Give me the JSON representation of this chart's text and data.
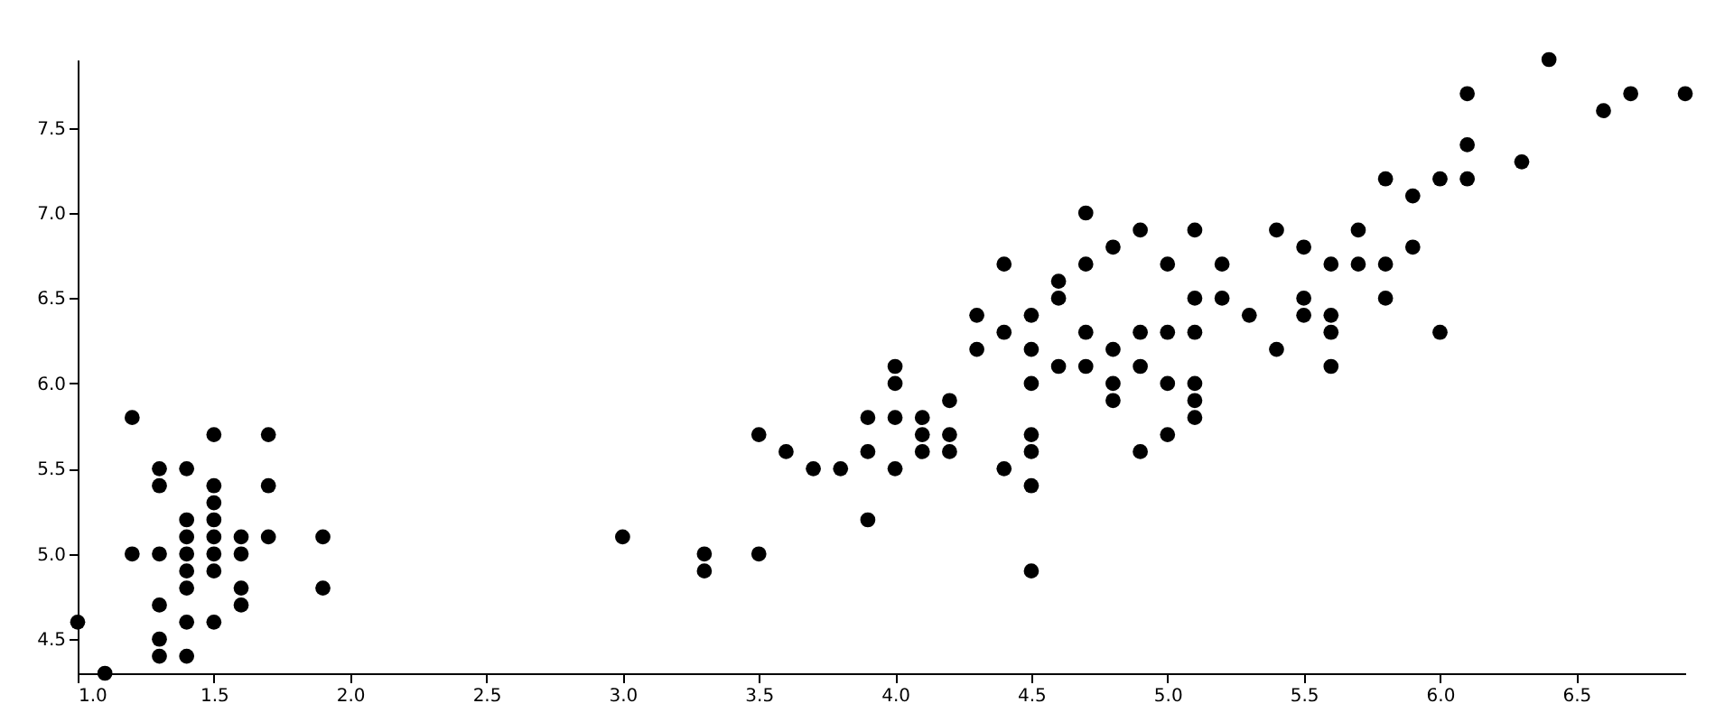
{
  "chart_data": {
    "type": "scatter",
    "marker": "circle",
    "grid": false,
    "xlim": [
      1.0,
      6.9
    ],
    "ylim": [
      4.3,
      7.9
    ],
    "xticks": [
      {
        "value": 1.0,
        "label": "1.0"
      },
      {
        "value": 1.5,
        "label": "1.5"
      },
      {
        "value": 2.0,
        "label": "2.0"
      },
      {
        "value": 2.5,
        "label": "2.5"
      },
      {
        "value": 3.0,
        "label": "3.0"
      },
      {
        "value": 3.5,
        "label": "3.5"
      },
      {
        "value": 4.0,
        "label": "4.0"
      },
      {
        "value": 4.5,
        "label": "4.5"
      },
      {
        "value": 5.0,
        "label": "5.0"
      },
      {
        "value": 5.5,
        "label": "5.5"
      },
      {
        "value": 6.0,
        "label": "6.0"
      },
      {
        "value": 6.5,
        "label": "6.5"
      }
    ],
    "yticks": [
      {
        "value": 4.5,
        "label": "4.5"
      },
      {
        "value": 5.0,
        "label": "5.0"
      },
      {
        "value": 5.5,
        "label": "5.5"
      },
      {
        "value": 6.0,
        "label": "6.0"
      },
      {
        "value": 6.5,
        "label": "6.5"
      },
      {
        "value": 7.0,
        "label": "7.0"
      },
      {
        "value": 7.5,
        "label": "7.5"
      }
    ],
    "series": [
      {
        "color": "#000000",
        "x": [
          1.0,
          1.1,
          1.2,
          1.2,
          1.3,
          1.3,
          1.3,
          1.3,
          1.3,
          1.3,
          1.4,
          1.4,
          1.4,
          1.4,
          1.4,
          1.4,
          1.4,
          1.4,
          1.5,
          1.5,
          1.5,
          1.5,
          1.5,
          1.5,
          1.5,
          1.5,
          1.6,
          1.6,
          1.6,
          1.6,
          1.7,
          1.7,
          1.7,
          1.9,
          1.9,
          3.0,
          3.3,
          3.3,
          3.5,
          3.5,
          3.6,
          3.7,
          3.8,
          3.9,
          3.9,
          3.9,
          4.0,
          4.0,
          4.0,
          4.0,
          4.1,
          4.1,
          4.1,
          4.2,
          4.2,
          4.2,
          4.3,
          4.3,
          4.4,
          4.4,
          4.4,
          4.5,
          4.5,
          4.5,
          4.5,
          4.5,
          4.5,
          4.5,
          4.6,
          4.6,
          4.6,
          4.7,
          4.7,
          4.7,
          4.7,
          4.8,
          4.8,
          4.8,
          4.8,
          4.9,
          4.9,
          4.9,
          4.9,
          5.0,
          5.0,
          5.0,
          5.0,
          5.1,
          5.1,
          5.1,
          5.1,
          5.1,
          5.1,
          5.2,
          5.2,
          5.3,
          5.4,
          5.4,
          5.5,
          5.5,
          5.5,
          5.6,
          5.6,
          5.6,
          5.6,
          5.7,
          5.7,
          5.8,
          5.8,
          5.8,
          5.9,
          5.9,
          6.0,
          6.0,
          6.1,
          6.1,
          6.1,
          6.3,
          6.4,
          6.6,
          6.7,
          6.9
        ],
        "values": [
          4.6,
          4.3,
          5.8,
          5.0,
          4.7,
          5.4,
          5.5,
          4.4,
          5.0,
          4.5,
          5.1,
          4.9,
          5.0,
          4.6,
          4.4,
          4.8,
          5.2,
          5.5,
          4.6,
          5.0,
          4.9,
          5.4,
          5.7,
          5.1,
          5.2,
          5.3,
          4.8,
          5.0,
          4.7,
          5.1,
          5.4,
          5.7,
          5.1,
          4.8,
          5.1,
          5.1,
          4.9,
          5.0,
          5.0,
          5.7,
          5.6,
          5.5,
          5.5,
          5.2,
          5.6,
          5.8,
          5.5,
          6.0,
          6.1,
          5.8,
          5.8,
          5.6,
          5.7,
          5.9,
          5.6,
          5.7,
          6.4,
          6.2,
          6.7,
          6.3,
          5.5,
          6.4,
          5.7,
          5.6,
          6.2,
          6.0,
          5.4,
          4.9,
          6.5,
          6.6,
          6.1,
          7.0,
          6.3,
          6.1,
          6.7,
          5.9,
          6.8,
          6.2,
          6.0,
          6.9,
          6.3,
          5.6,
          6.1,
          6.7,
          5.7,
          6.0,
          6.3,
          6.0,
          5.8,
          6.5,
          6.3,
          6.9,
          5.9,
          6.7,
          6.5,
          6.4,
          6.9,
          6.2,
          6.5,
          6.8,
          6.4,
          6.3,
          6.4,
          6.1,
          6.7,
          6.9,
          6.7,
          6.5,
          6.7,
          7.2,
          7.1,
          6.8,
          6.3,
          7.2,
          7.2,
          7.4,
          7.7,
          7.3,
          7.9,
          7.6,
          7.7,
          7.7
        ]
      }
    ]
  }
}
